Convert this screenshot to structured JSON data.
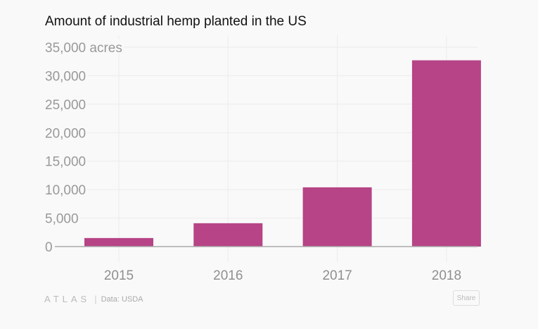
{
  "colors": {
    "bar": "#b64486",
    "grid": "#ececec",
    "axis": "#aaaaaa"
  },
  "footer": {
    "logo": "ATLAS",
    "separator": "|",
    "source": "Data:  USDA",
    "share_label": "Share"
  },
  "chart_data": {
    "type": "bar",
    "title": "Amount of industrial hemp planted in the US",
    "xlabel": "",
    "ylabel": "acres",
    "categories": [
      "2015",
      "2016",
      "2017",
      "2018"
    ],
    "values": [
      1500,
      4100,
      10400,
      32700
    ],
    "ylim": [
      0,
      35000
    ],
    "yticks": [
      0,
      5000,
      10000,
      15000,
      20000,
      25000,
      30000,
      35000
    ],
    "ytick_labels": [
      "0",
      "5,000",
      "10,000",
      "15,000",
      "20,000",
      "25,000",
      "30,000",
      "35,000 acres"
    ],
    "grid": true,
    "legend": "none"
  }
}
